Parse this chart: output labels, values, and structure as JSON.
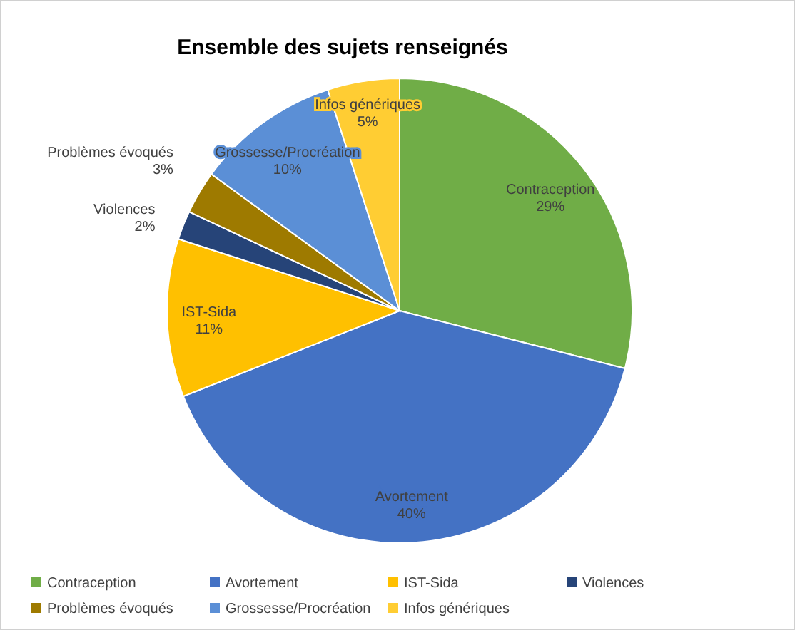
{
  "chart_data": {
    "type": "pie",
    "title": "Ensemble des sujets renseignés",
    "categories": [
      "Contraception",
      "Avortement",
      "IST-Sida",
      "Violences",
      "Problèmes évoqués",
      "Grossesse/Procréation",
      "Infos génériques"
    ],
    "values": [
      29,
      40,
      11,
      2,
      3,
      10,
      5
    ],
    "colors": [
      "#70ad47",
      "#4472c4",
      "#ffc000",
      "#264478",
      "#9e7a00",
      "#5b8fd6",
      "#ffcd33"
    ],
    "value_labels": [
      "29%",
      "40%",
      "11%",
      "2%",
      "3%",
      "10%",
      "5%"
    ],
    "legend": "bottom"
  }
}
